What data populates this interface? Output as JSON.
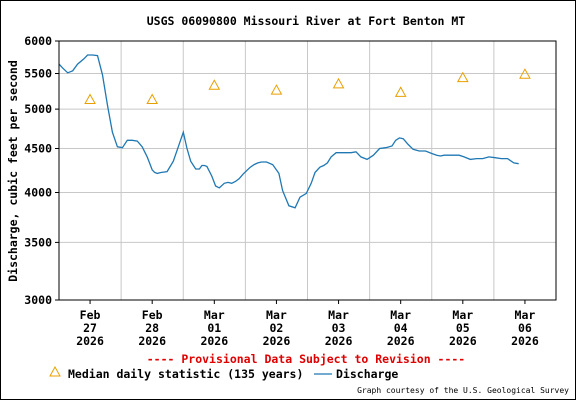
{
  "chart_data": {
    "type": "line",
    "title": "USGS 06090800 Missouri River at Fort Benton MT",
    "ylabel": "Discharge, cubic feet per second",
    "xlabel": "",
    "y_scale": "log",
    "ylim": [
      3000,
      6000
    ],
    "y_ticks": [
      3000,
      3500,
      4000,
      4500,
      5000,
      5500,
      6000
    ],
    "x_tick_labels": [
      [
        "Feb",
        "27",
        "2026"
      ],
      [
        "Feb",
        "28",
        "2026"
      ],
      [
        "Mar",
        "01",
        "2026"
      ],
      [
        "Mar",
        "02",
        "2026"
      ],
      [
        "Mar",
        "03",
        "2026"
      ],
      [
        "Mar",
        "04",
        "2026"
      ],
      [
        "Mar",
        "05",
        "2026"
      ],
      [
        "Mar",
        "06",
        "2026"
      ]
    ],
    "xlim_days": [
      -0.5,
      7.5
    ],
    "grid": true,
    "series": [
      {
        "name": "Discharge",
        "style": "line",
        "color": "#1f78b4",
        "x_days": [
          -0.5,
          -0.44,
          -0.36,
          -0.28,
          -0.2,
          -0.1,
          -0.04,
          0.04,
          0.12,
          0.2,
          0.28,
          0.36,
          0.44,
          0.52,
          0.6,
          0.68,
          0.76,
          0.84,
          0.92,
          1.0,
          1.04,
          1.08,
          1.14,
          1.24,
          1.34,
          1.42,
          1.5,
          1.56,
          1.62,
          1.7,
          1.76,
          1.8,
          1.84,
          1.88,
          1.96,
          2.02,
          2.08,
          2.16,
          2.22,
          2.28,
          2.34,
          2.4,
          2.46,
          2.52,
          2.58,
          2.64,
          2.7,
          2.76,
          2.84,
          2.94,
          3.04,
          3.1,
          3.2,
          3.3,
          3.38,
          3.48,
          3.56,
          3.62,
          3.7,
          3.76,
          3.82,
          3.88,
          3.96,
          4.04,
          4.12,
          4.2,
          4.28,
          4.36,
          4.46,
          4.56,
          4.66,
          4.76,
          4.86,
          4.92,
          4.98,
          5.04,
          5.12,
          5.2,
          5.3,
          5.4,
          5.5,
          5.58,
          5.64,
          5.7,
          5.78,
          5.86,
          5.94,
          6.02,
          6.12,
          6.22,
          6.32,
          6.42,
          6.52,
          6.62,
          6.72,
          6.82,
          6.9
        ],
        "values": [
          5640,
          5580,
          5510,
          5540,
          5640,
          5720,
          5780,
          5780,
          5770,
          5480,
          5050,
          4700,
          4520,
          4510,
          4600,
          4600,
          4590,
          4520,
          4400,
          4250,
          4220,
          4210,
          4220,
          4230,
          4350,
          4520,
          4700,
          4500,
          4350,
          4260,
          4260,
          4300,
          4300,
          4290,
          4180,
          4070,
          4050,
          4100,
          4110,
          4100,
          4120,
          4150,
          4200,
          4240,
          4280,
          4310,
          4330,
          4340,
          4340,
          4310,
          4210,
          4020,
          3860,
          3840,
          3950,
          3990,
          4100,
          4220,
          4280,
          4300,
          4330,
          4400,
          4450,
          4450,
          4450,
          4450,
          4460,
          4400,
          4370,
          4420,
          4500,
          4510,
          4530,
          4600,
          4630,
          4620,
          4550,
          4490,
          4470,
          4470,
          4440,
          4420,
          4410,
          4420,
          4420,
          4420,
          4420,
          4400,
          4370,
          4380,
          4380,
          4400,
          4390,
          4380,
          4380,
          4330,
          4320
        ]
      },
      {
        "name": "Median daily statistic (135 years)",
        "style": "triangle",
        "color": "#e8a000",
        "x_days": [
          0.0,
          1.0,
          2.0,
          3.0,
          4.0,
          5.0,
          6.0,
          7.0
        ],
        "values": [
          5130,
          5130,
          5330,
          5260,
          5350,
          5230,
          5440,
          5490
        ]
      }
    ],
    "notice": "---- Provisional Data Subject to Revision ----",
    "legend": {
      "placement": "bottom-left",
      "entries": [
        {
          "label": "Median daily statistic (135 years)",
          "symbol": "triangle"
        },
        {
          "label": "Discharge",
          "symbol": "line"
        }
      ]
    },
    "credit": "Graph courtesy of the U.S. Geological Survey"
  }
}
